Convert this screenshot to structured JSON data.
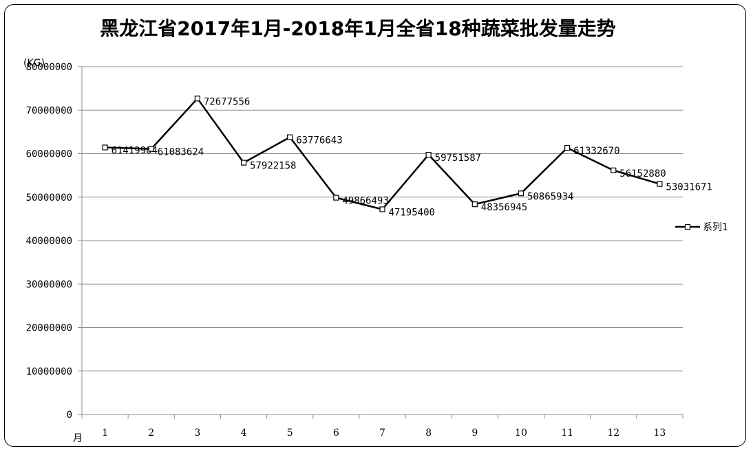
{
  "chart_data": {
    "type": "line",
    "title": "黑龙江省2017年1月-2018年1月全省18种蔬菜批发量走势",
    "ylabel": "(KG)",
    "xlabel": "月",
    "categories": [
      "1",
      "2",
      "3",
      "4",
      "5",
      "6",
      "7",
      "8",
      "9",
      "10",
      "11",
      "12",
      "13"
    ],
    "series": [
      {
        "name": "系列1",
        "values": [
          61419904,
          61083624,
          72677556,
          57922158,
          63776643,
          49866493,
          47195400,
          59751587,
          48356945,
          50865934,
          61332670,
          56152880,
          53031671
        ]
      }
    ],
    "ylim": [
      0,
      80000000
    ],
    "yticks": [
      "0",
      "10000000",
      "20000000",
      "30000000",
      "40000000",
      "50000000",
      "60000000",
      "70000000",
      "80000000"
    ],
    "grid": true,
    "legend_position": "right",
    "line_color": "#000000"
  }
}
